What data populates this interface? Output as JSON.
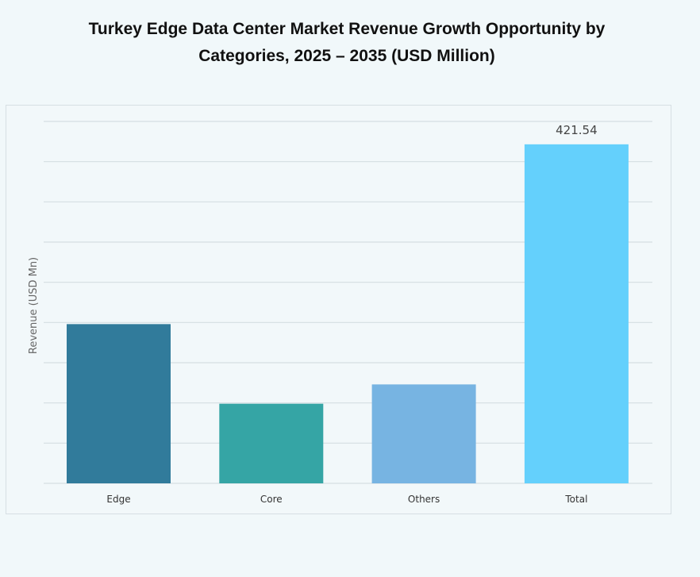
{
  "chart_data": {
    "type": "bar",
    "title": "Turkey Edge Data Center Market Revenue Growth Opportunity by Categories, 2025 – 2035 (USD Million)",
    "title_lines": [
      "Turkey Edge Data Center Market Revenue Growth Opportunity by",
      "Categories, 2025 – 2035 (USD Million)"
    ],
    "xlabel": "",
    "ylabel": "Revenue (USD Mn)",
    "categories": [
      "Edge",
      "Core",
      "Others",
      "Total"
    ],
    "values": [
      198,
      99,
      123,
      421.54
    ],
    "data_labels": [
      "",
      "",
      "",
      "421.54"
    ],
    "colors": [
      "#317b9b",
      "#35a5a5",
      "#77b4e2",
      "#64d0fc"
    ],
    "ylim": [
      0,
      450
    ],
    "grid": true,
    "y_tick_labels_shown": false,
    "legend": "none"
  }
}
